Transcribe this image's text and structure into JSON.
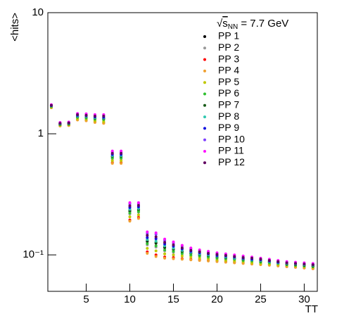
{
  "chart_data": {
    "type": "scatter",
    "yscale": "log",
    "y_label": "<hits>",
    "x_label": "TT",
    "annotation": {
      "root": "√",
      "s": "s",
      "sub": "NN",
      "rest": " = 7.7 GeV"
    },
    "xlim": [
      0.6,
      31.5
    ],
    "ylim": [
      0.05,
      10
    ],
    "xticks": [
      5,
      10,
      15,
      20,
      25,
      30
    ],
    "yticks": [
      {
        "value": 0.1,
        "label": "10⁻¹"
      },
      1,
      10
    ],
    "x": [
      1,
      2,
      3,
      4,
      5,
      6,
      7,
      8,
      9,
      10,
      11,
      12,
      13,
      14,
      15,
      16,
      17,
      18,
      19,
      20,
      21,
      22,
      23,
      24,
      25,
      26,
      27,
      28,
      29,
      30,
      31
    ],
    "series": [
      {
        "name": "PP 1",
        "color": "#000000",
        "values": [
          1.69,
          1.2,
          1.21,
          1.39,
          1.37,
          1.34,
          1.33,
          0.645,
          0.645,
          0.23,
          0.235,
          0.129,
          0.125,
          0.115,
          0.111,
          0.106,
          0.103,
          0.1,
          0.098,
          0.096,
          0.095,
          0.093,
          0.092,
          0.09,
          0.089,
          0.087,
          0.086,
          0.084,
          0.083,
          0.082,
          0.081
        ]
      },
      {
        "name": "PP 2",
        "color": "#999999",
        "values": [
          1.68,
          1.19,
          1.2,
          1.36,
          1.34,
          1.31,
          1.3,
          0.623,
          0.623,
          0.218,
          0.225,
          0.121,
          0.116,
          0.108,
          0.105,
          0.102,
          0.099,
          0.097,
          0.095,
          0.094,
          0.092,
          0.091,
          0.09,
          0.088,
          0.087,
          0.086,
          0.084,
          0.083,
          0.082,
          0.081,
          0.08
        ]
      },
      {
        "name": "PP 3",
        "color": "#ff0000",
        "values": [
          1.645,
          1.164,
          1.174,
          1.309,
          1.289,
          1.25,
          1.231,
          0.578,
          0.578,
          0.194,
          0.204,
          0.106,
          0.1,
          0.096,
          0.095,
          0.093,
          0.092,
          0.091,
          0.09,
          0.089,
          0.088,
          0.087,
          0.086,
          0.085,
          0.084,
          0.083,
          0.082,
          0.08,
          0.079,
          0.078,
          0.077
        ]
      },
      {
        "name": "PP 4",
        "color": "#f0a030",
        "values": [
          1.64,
          1.16,
          1.17,
          1.3,
          1.28,
          1.24,
          1.22,
          0.57,
          0.57,
          0.19,
          0.2,
          0.103,
          0.097,
          0.094,
          0.093,
          0.092,
          0.091,
          0.09,
          0.089,
          0.088,
          0.087,
          0.086,
          0.085,
          0.084,
          0.083,
          0.082,
          0.081,
          0.08,
          0.079,
          0.078,
          0.077
        ]
      },
      {
        "name": "PP 5",
        "color": "#c0c800",
        "values": [
          1.66,
          1.18,
          1.19,
          1.33,
          1.32,
          1.28,
          1.26,
          0.6,
          0.6,
          0.206,
          0.214,
          0.113,
          0.108,
          0.102,
          0.1,
          0.098,
          0.096,
          0.094,
          0.093,
          0.091,
          0.09,
          0.089,
          0.088,
          0.086,
          0.085,
          0.084,
          0.083,
          0.082,
          0.081,
          0.08,
          0.079
        ]
      },
      {
        "name": "PP 6",
        "color": "#30c030",
        "values": [
          1.68,
          1.19,
          1.2,
          1.37,
          1.35,
          1.32,
          1.31,
          0.63,
          0.63,
          0.222,
          0.228,
          0.124,
          0.119,
          0.11,
          0.107,
          0.103,
          0.1,
          0.098,
          0.096,
          0.094,
          0.093,
          0.092,
          0.09,
          0.089,
          0.087,
          0.086,
          0.085,
          0.083,
          0.082,
          0.081,
          0.08
        ]
      },
      {
        "name": "PP 7",
        "color": "#1a5c1a",
        "values": [
          1.7,
          1.2,
          1.21,
          1.39,
          1.38,
          1.35,
          1.34,
          0.653,
          0.653,
          0.234,
          0.239,
          0.132,
          0.127,
          0.117,
          0.112,
          0.107,
          0.104,
          0.101,
          0.099,
          0.097,
          0.095,
          0.094,
          0.092,
          0.091,
          0.089,
          0.088,
          0.086,
          0.084,
          0.083,
          0.082,
          0.081
        ]
      },
      {
        "name": "PP 8",
        "color": "#30c8b0",
        "values": [
          1.7,
          1.21,
          1.22,
          1.4,
          1.39,
          1.36,
          1.35,
          0.66,
          0.66,
          0.238,
          0.242,
          0.134,
          0.13,
          0.119,
          0.114,
          0.109,
          0.105,
          0.102,
          0.1,
          0.098,
          0.096,
          0.094,
          0.093,
          0.091,
          0.09,
          0.088,
          0.086,
          0.085,
          0.084,
          0.083,
          0.082
        ]
      },
      {
        "name": "PP 9",
        "color": "#1010e0",
        "values": [
          1.71,
          1.22,
          1.23,
          1.42,
          1.41,
          1.38,
          1.37,
          0.675,
          0.675,
          0.246,
          0.249,
          0.139,
          0.136,
          0.123,
          0.118,
          0.112,
          0.107,
          0.104,
          0.102,
          0.099,
          0.098,
          0.096,
          0.094,
          0.092,
          0.091,
          0.089,
          0.087,
          0.086,
          0.085,
          0.084,
          0.083
        ]
      },
      {
        "name": "PP 10",
        "color": "#8040ff",
        "values": [
          1.73,
          1.23,
          1.24,
          1.46,
          1.45,
          1.42,
          1.42,
          0.708,
          0.708,
          0.264,
          0.264,
          0.151,
          0.148,
          0.132,
          0.125,
          0.118,
          0.112,
          0.108,
          0.106,
          0.103,
          0.101,
          0.099,
          0.097,
          0.095,
          0.093,
          0.091,
          0.089,
          0.087,
          0.086,
          0.085,
          0.084
        ]
      },
      {
        "name": "PP 11",
        "color": "#ff10ff",
        "values": [
          1.74,
          1.24,
          1.25,
          1.47,
          1.46,
          1.44,
          1.44,
          0.72,
          0.72,
          0.27,
          0.27,
          0.155,
          0.152,
          0.135,
          0.128,
          0.12,
          0.114,
          0.11,
          0.107,
          0.104,
          0.102,
          0.1,
          0.098,
          0.096,
          0.094,
          0.092,
          0.09,
          0.088,
          0.087,
          0.086,
          0.085
        ]
      },
      {
        "name": "PP 12",
        "color": "#600060",
        "values": [
          1.72,
          1.22,
          1.23,
          1.44,
          1.42,
          1.4,
          1.4,
          0.69,
          0.69,
          0.254,
          0.256,
          0.145,
          0.141,
          0.127,
          0.121,
          0.114,
          0.109,
          0.106,
          0.103,
          0.101,
          0.099,
          0.097,
          0.095,
          0.094,
          0.092,
          0.09,
          0.088,
          0.086,
          0.085,
          0.084,
          0.083
        ]
      }
    ]
  }
}
